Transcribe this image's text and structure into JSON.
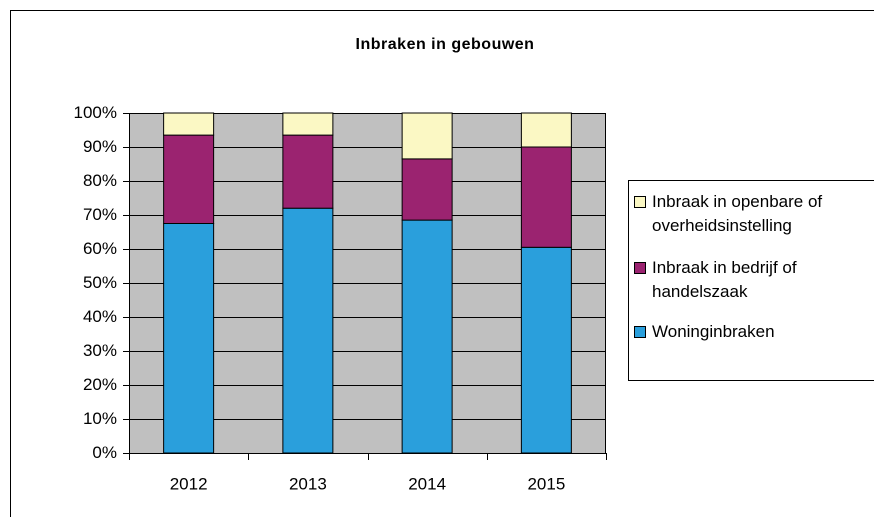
{
  "chart_data": {
    "type": "stacked_bar",
    "title": "Inbraken in gebouwen",
    "categories": [
      "2012",
      "2013",
      "2014",
      "2015"
    ],
    "series": [
      {
        "name": "Woninginbraken",
        "color": "#2a9fdc",
        "values": [
          67.5,
          72,
          68.5,
          60.5
        ]
      },
      {
        "name": "Inbraak in bedrijf of handelszaak",
        "color": "#9b2370",
        "values": [
          26,
          21.5,
          18,
          29.5
        ]
      },
      {
        "name": "Inbraak in openbare of overheidsinstelling",
        "color": "#fbf8c4",
        "values": [
          6.5,
          6.5,
          13.5,
          10
        ]
      }
    ],
    "ylim": [
      0,
      100
    ],
    "yticks": [
      {
        "value": 0,
        "label": "0%"
      },
      {
        "value": 10,
        "label": "10%"
      },
      {
        "value": 20,
        "label": "20%"
      },
      {
        "value": 30,
        "label": "30%"
      },
      {
        "value": 40,
        "label": "40%"
      },
      {
        "value": 50,
        "label": "50%"
      },
      {
        "value": 60,
        "label": "60%"
      },
      {
        "value": 70,
        "label": "70%"
      },
      {
        "value": 80,
        "label": "80%"
      },
      {
        "value": 90,
        "label": "90%"
      },
      {
        "value": 100,
        "label": "100%"
      }
    ],
    "grid": true,
    "plot_background": "#c0c0c0",
    "legend": "right"
  }
}
